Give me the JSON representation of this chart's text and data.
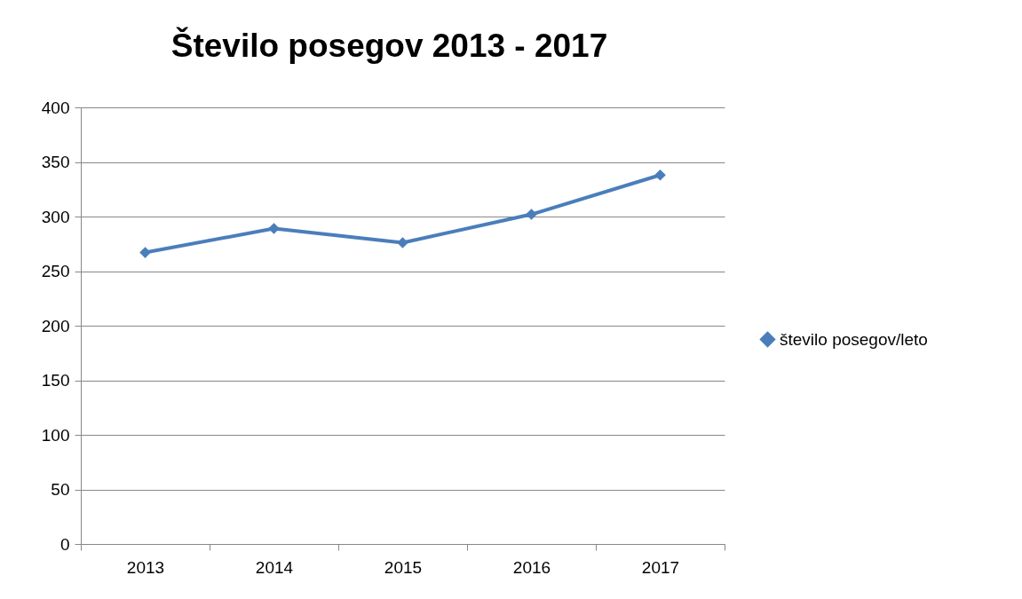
{
  "chart_data": {
    "type": "line",
    "title": "Število posegov 2013 - 2017",
    "categories": [
      "2013",
      "2014",
      "2015",
      "2016",
      "2017"
    ],
    "series": [
      {
        "name": "število posegov/leto",
        "color": "#4a7ebb",
        "values": [
          267,
          289,
          276,
          302,
          338
        ]
      }
    ],
    "ylim": [
      0,
      400
    ],
    "yticks": [
      0,
      50,
      100,
      150,
      200,
      250,
      300,
      350,
      400
    ],
    "grid": "y",
    "legend": "right",
    "marker": "diamond"
  }
}
